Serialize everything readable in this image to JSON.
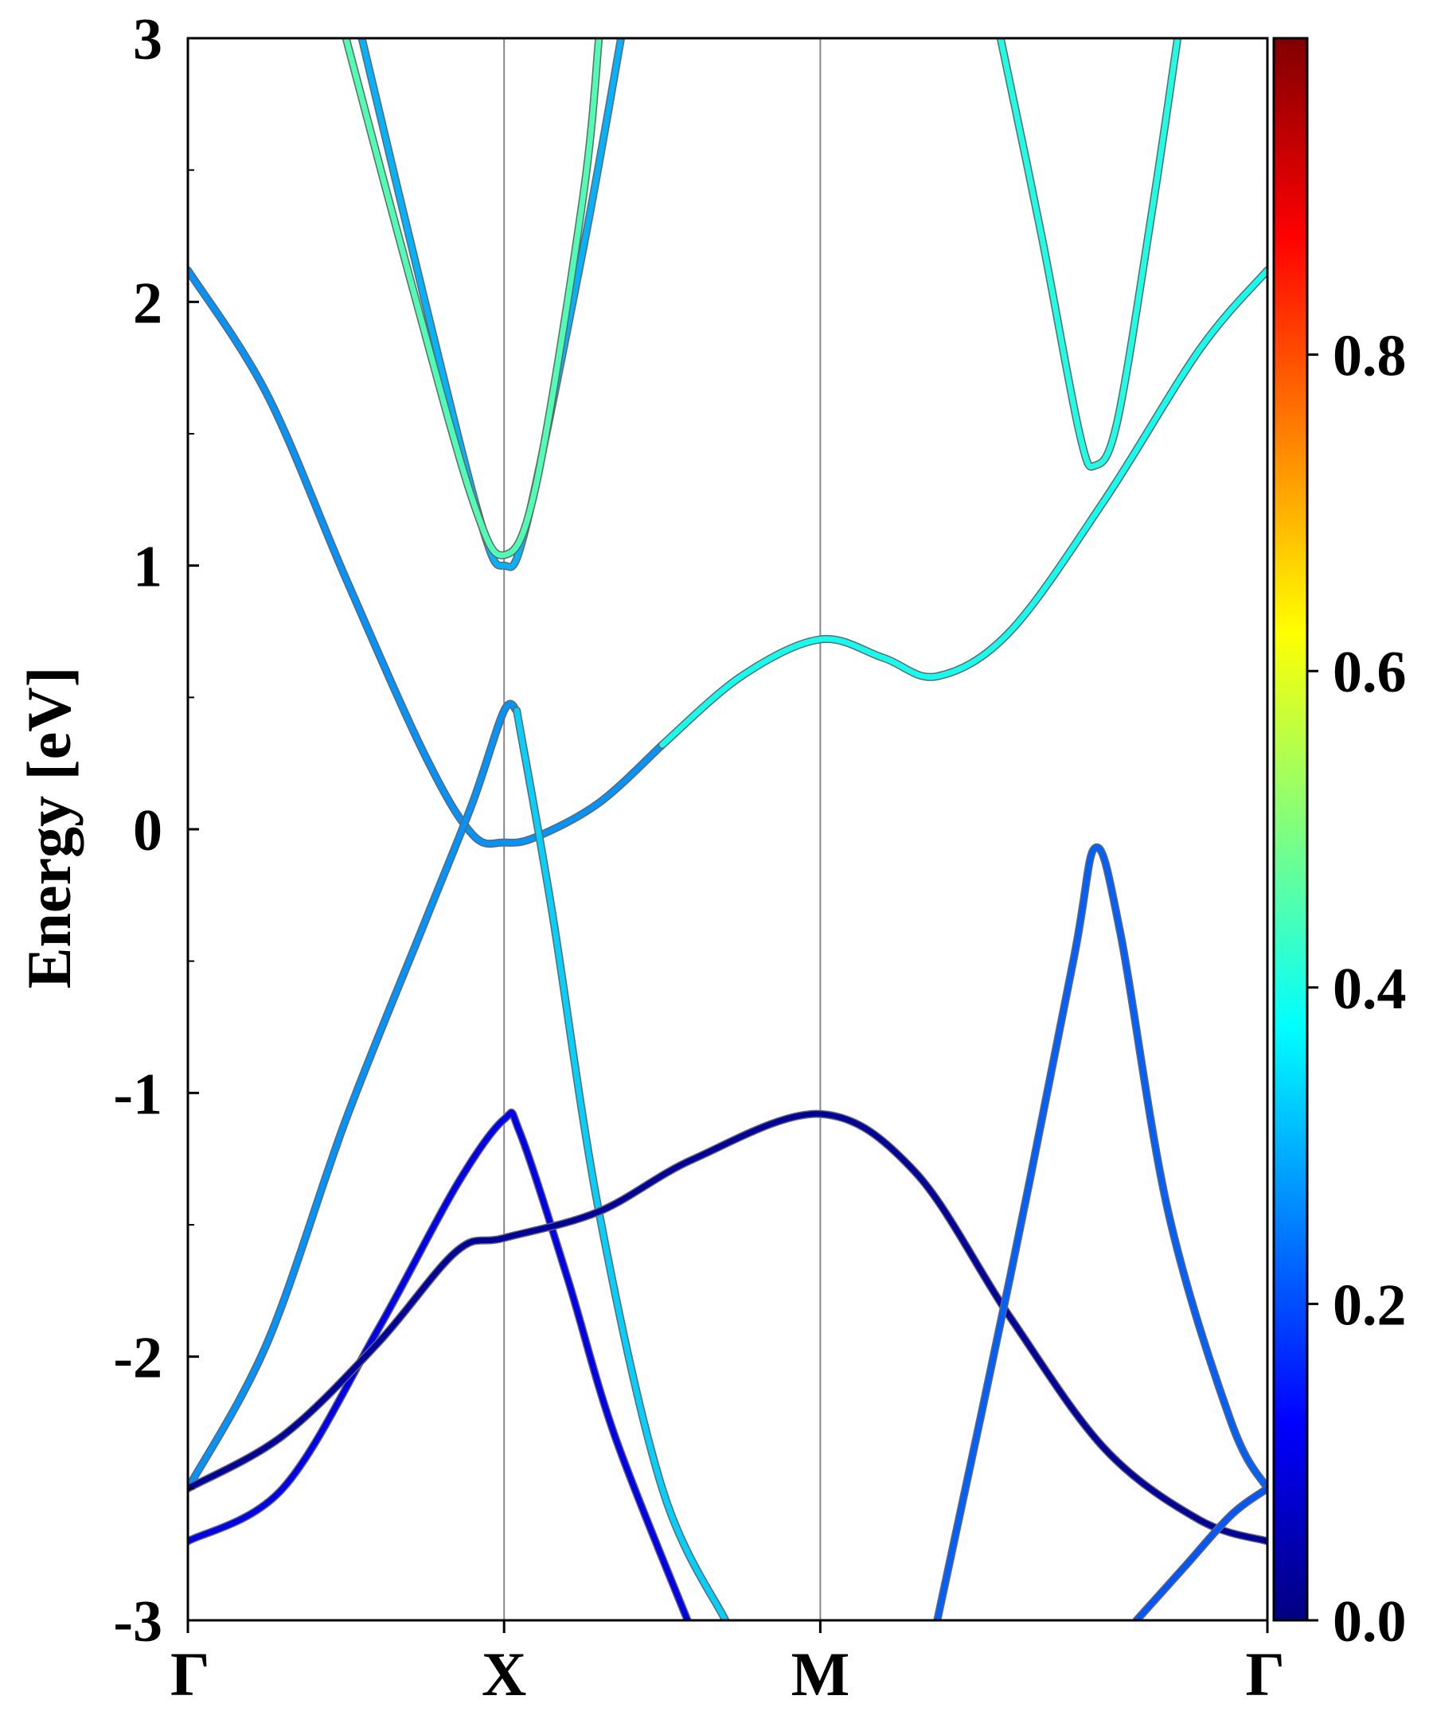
{
  "chart_data": {
    "type": "line",
    "ylabel": "Energy [eV]",
    "ylim": [
      -3,
      3
    ],
    "yticks": [
      -3,
      -2,
      -1,
      0,
      1,
      2,
      3
    ],
    "yticklabels": [
      "-3",
      "-2",
      "-1",
      "0",
      "1",
      "2",
      "3"
    ],
    "kpath": {
      "labels": [
        "Γ",
        "X",
        "M",
        "Γ"
      ],
      "positions": [
        0,
        1,
        2,
        3.414
      ]
    },
    "grid": "vertical lines at high-symmetry points",
    "colorbar": {
      "colormap": "jet",
      "range": [
        0,
        1
      ],
      "ticks": [
        0.0,
        0.2,
        0.4,
        0.6,
        0.8
      ],
      "ticklabels": [
        "0.0",
        "0.2",
        "0.4",
        "0.6",
        "0.8"
      ],
      "placement": "right"
    },
    "bands": [
      {
        "id": "band-1",
        "weight": 0.27,
        "x": [
          0,
          0.25,
          0.5,
          0.75,
          0.9,
          1.0,
          1.1,
          1.3,
          1.5
        ],
        "y": [
          2.12,
          1.65,
          0.95,
          0.28,
          -0.02,
          -0.05,
          -0.03,
          0.1,
          0.32
        ]
      },
      {
        "id": "band-2",
        "weight": 0.39,
        "x": [
          1.5,
          1.75,
          2.0,
          2.2,
          2.37,
          2.6,
          2.9,
          3.2,
          3.414
        ],
        "y": [
          0.32,
          0.58,
          0.72,
          0.65,
          0.58,
          0.75,
          1.25,
          1.82,
          2.12
        ]
      },
      {
        "id": "band-3",
        "weight": 0.27,
        "x": [
          0,
          0.25,
          0.5,
          0.75,
          0.9,
          1.0,
          1.04
        ],
        "y": [
          -2.5,
          -1.95,
          -1.1,
          -0.35,
          0.1,
          0.45,
          0.45
        ]
      },
      {
        "id": "band-4",
        "weight": 0.33,
        "x": [
          1.04,
          1.15,
          1.3,
          1.5,
          1.7
        ],
        "y": [
          0.45,
          -0.3,
          -1.45,
          -2.5,
          -3.0
        ]
      },
      {
        "id": "band-5",
        "weight": 0.11,
        "x": [
          0,
          0.3,
          0.6,
          0.85,
          1.0,
          1.05,
          1.2,
          1.35,
          1.58
        ],
        "y": [
          -2.7,
          -2.5,
          -1.9,
          -1.35,
          -1.1,
          -1.15,
          -1.7,
          -2.3,
          -3.0
        ]
      },
      {
        "id": "band-6",
        "weight": 0.03,
        "x": [
          0,
          0.3,
          0.6,
          0.85,
          1.0,
          1.3,
          1.6,
          2.0,
          2.3,
          2.6,
          2.9,
          3.2,
          3.414
        ],
        "y": [
          -2.5,
          -2.3,
          -1.95,
          -1.6,
          -1.55,
          -1.45,
          -1.25,
          -1.08,
          -1.3,
          -1.85,
          -2.35,
          -2.62,
          -2.7
        ]
      },
      {
        "id": "band-7",
        "weight": 0.22,
        "x": [
          2.37,
          2.6,
          2.8,
          2.87,
          2.95,
          3.1,
          3.3,
          3.414
        ],
        "y": [
          -3.0,
          -1.7,
          -0.5,
          -0.07,
          -0.4,
          -1.45,
          -2.25,
          -2.5
        ]
      },
      {
        "id": "band-8",
        "weight": 0.21,
        "x": [
          3.0,
          3.15,
          3.3,
          3.414
        ],
        "y": [
          -3.0,
          -2.8,
          -2.6,
          -2.5
        ]
      },
      {
        "id": "band-9",
        "weight": 0.3,
        "x": [
          0.55,
          0.75,
          0.93,
          1.0,
          1.07,
          1.25,
          1.37
        ],
        "y": [
          3.0,
          2.0,
          1.15,
          1.0,
          1.15,
          2.2,
          3.0
        ]
      },
      {
        "id": "band-10",
        "weight": 0.45,
        "x": [
          0.5,
          0.7,
          0.9,
          1.0,
          1.1,
          1.25,
          1.3
        ],
        "y": [
          3.0,
          2.1,
          1.25,
          1.04,
          1.3,
          2.4,
          3.0
        ]
      },
      {
        "id": "band-11",
        "weight": 0.4,
        "x": [
          2.57,
          2.7,
          2.82,
          2.87,
          2.94,
          3.05,
          3.13
        ],
        "y": [
          3.0,
          2.25,
          1.5,
          1.38,
          1.55,
          2.35,
          3.0
        ]
      }
    ]
  }
}
